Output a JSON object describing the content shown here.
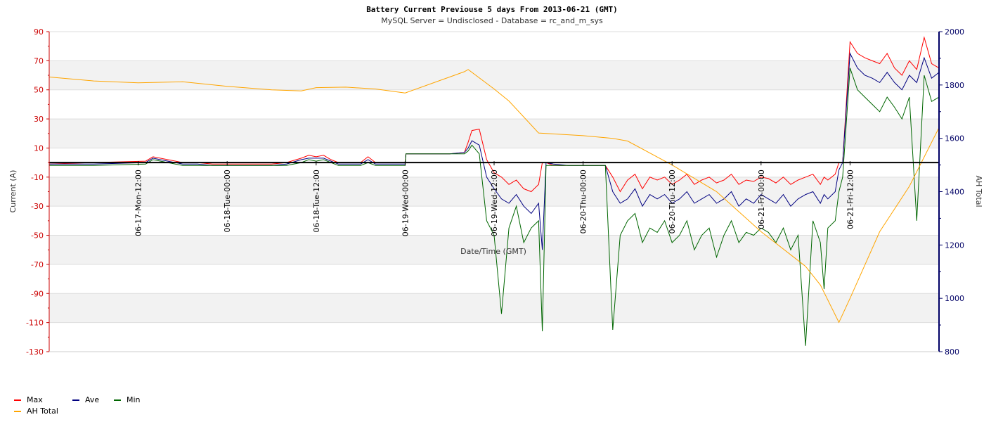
{
  "chart_data": {
    "type": "line",
    "title": "Battery Current Previouse 5 days From 2013-06-21 (GMT)",
    "subtitle": "MySQL Server = Undisclosed - Database = rc_and_m_sys",
    "xlabel": "Date/Time (GMT)",
    "ylabel_left": "Current (A)",
    "ylabel_right": "AH Total",
    "ylim_left": [
      -130,
      90
    ],
    "ylim_right": [
      800,
      2000
    ],
    "yticks_left": [
      90,
      70,
      50,
      30,
      10,
      -10,
      -30,
      -50,
      -70,
      -90,
      -110,
      -130
    ],
    "yticks_right": [
      2000,
      1800,
      1600,
      1400,
      1200,
      1000,
      800
    ],
    "x_hours_range": [
      0,
      120
    ],
    "x_ticks": [
      {
        "hour": 12,
        "label": "06-17-Mon-12:00"
      },
      {
        "hour": 24,
        "label": "06-18-Tue-00:00"
      },
      {
        "hour": 36,
        "label": "06-18-Tue-12:00"
      },
      {
        "hour": 48,
        "label": "06-19-Wed-00:00"
      },
      {
        "hour": 60,
        "label": "06-19-Wed-12:00"
      },
      {
        "hour": 72,
        "label": "06-20-Thu-00:00"
      },
      {
        "hour": 84,
        "label": "06-20-Thu-12:00"
      },
      {
        "hour": 96,
        "label": "06-21-Fri-00:00"
      },
      {
        "hour": 108,
        "label": "06-21-Fri-12:00"
      }
    ],
    "grid": true,
    "zero_line": true,
    "legend_position": "bottom-left",
    "series": [
      {
        "name": "Max",
        "color": "#ff0000",
        "axis": "left",
        "x": [
          0,
          6,
          13,
          14,
          16,
          18,
          20,
          22,
          24,
          30,
          32,
          34,
          35,
          36,
          37,
          38,
          39,
          40,
          42,
          43,
          44,
          46,
          48,
          48.1,
          54,
          56,
          56.5,
          57,
          58,
          59,
          60,
          61,
          62,
          63,
          64,
          65,
          66,
          66.5,
          67,
          68,
          70,
          72,
          74,
          75,
          76,
          77,
          78,
          79,
          80,
          81,
          82,
          83,
          84,
          85,
          86,
          87,
          88,
          89,
          90,
          91,
          92,
          93,
          94,
          95,
          96,
          97,
          98,
          99,
          100,
          101,
          102,
          103,
          104,
          104.5,
          105,
          106,
          106.5,
          107,
          108,
          109,
          110,
          111,
          112,
          113,
          114,
          115,
          116,
          117,
          118,
          119,
          120
        ],
        "values": [
          -1,
          0,
          1,
          4,
          2,
          0,
          0,
          -1,
          -1,
          -1,
          0,
          3,
          5,
          4,
          5,
          2,
          0,
          0,
          0,
          4,
          0,
          0,
          0,
          6,
          6,
          7,
          14,
          22,
          23,
          2,
          -7,
          -10,
          -15,
          -12,
          -18,
          -20,
          -15,
          0,
          0,
          -2,
          -2,
          -2,
          -2,
          -2,
          -10,
          -20,
          -12,
          -8,
          -18,
          -10,
          -12,
          -10,
          -15,
          -12,
          -8,
          -15,
          -12,
          -10,
          -14,
          -12,
          -8,
          -15,
          -12,
          -13,
          -10,
          -11,
          -14,
          -10,
          -15,
          -12,
          -10,
          -8,
          -15,
          -10,
          -12,
          -8,
          0,
          0,
          83,
          75,
          72,
          70,
          68,
          75,
          65,
          60,
          70,
          64,
          86,
          68,
          65
        ],
        "x_extra_note": ""
      },
      {
        "name": "Ave",
        "color": "#000080",
        "axis": "left",
        "x": [
          0,
          6,
          13,
          14,
          16,
          18,
          20,
          22,
          24,
          30,
          32,
          34,
          35,
          36,
          37,
          38,
          39,
          40,
          42,
          43,
          44,
          46,
          48,
          48.1,
          54,
          56,
          56.5,
          57,
          58,
          59,
          60,
          61,
          62,
          63,
          64,
          65,
          66,
          66.5,
          67,
          68,
          70,
          72,
          74,
          75,
          76,
          77,
          78,
          79,
          80,
          81,
          82,
          83,
          84,
          85,
          86,
          87,
          88,
          89,
          90,
          91,
          92,
          93,
          94,
          95,
          96,
          97,
          98,
          99,
          100,
          101,
          102,
          103,
          104,
          104.5,
          105,
          106,
          106.5,
          107,
          108,
          109,
          110,
          111,
          112,
          113,
          114,
          115,
          116,
          117,
          118,
          119,
          120
        ],
        "values": [
          -1,
          -1,
          0,
          3,
          1,
          -1,
          -1,
          -2,
          -2,
          -2,
          -1,
          2,
          3,
          3,
          3,
          1,
          -1,
          -1,
          -1,
          2,
          -1,
          -1,
          -1,
          6,
          6,
          7,
          10,
          15,
          12,
          -10,
          -18,
          -25,
          -28,
          -22,
          -30,
          -35,
          -28,
          -60,
          0,
          -1,
          -2,
          -2,
          -2,
          -2,
          -20,
          -28,
          -25,
          -18,
          -30,
          -22,
          -25,
          -22,
          -28,
          -25,
          -20,
          -28,
          -25,
          -22,
          -28,
          -25,
          -20,
          -30,
          -25,
          -28,
          -22,
          -25,
          -28,
          -22,
          -30,
          -25,
          -22,
          -20,
          -28,
          -22,
          -25,
          -20,
          -5,
          0,
          75,
          65,
          60,
          58,
          55,
          62,
          55,
          50,
          60,
          55,
          72,
          58,
          62
        ],
        "x_extra_note": ""
      },
      {
        "name": "Min",
        "color": "#006600",
        "axis": "left",
        "x": [
          0,
          6,
          13,
          14,
          16,
          18,
          20,
          22,
          24,
          30,
          32,
          34,
          35,
          36,
          37,
          38,
          39,
          40,
          42,
          43,
          44,
          46,
          48,
          48.1,
          54,
          56,
          56.5,
          57,
          58,
          59,
          60,
          61,
          62,
          63,
          64,
          65,
          66,
          66.5,
          67,
          68,
          70,
          72,
          74,
          75,
          76,
          77,
          78,
          79,
          80,
          81,
          82,
          83,
          84,
          85,
          86,
          87,
          88,
          89,
          90,
          91,
          92,
          93,
          94,
          95,
          96,
          97,
          98,
          99,
          100,
          101,
          102,
          103,
          104,
          104.5,
          105,
          106,
          106.5,
          107,
          108,
          109,
          110,
          111,
          112,
          113,
          114,
          115,
          116,
          117,
          118,
          119,
          120
        ],
        "values": [
          -2,
          -2,
          -1,
          2,
          0,
          -2,
          -2,
          -2,
          -2,
          -2,
          -2,
          0,
          2,
          1,
          2,
          0,
          -2,
          -2,
          -2,
          0,
          -2,
          -2,
          -2,
          6,
          6,
          6,
          8,
          12,
          6,
          -40,
          -50,
          -104,
          -45,
          -30,
          -55,
          -45,
          -40,
          -116,
          -2,
          -2,
          -2,
          -2,
          -2,
          -2,
          -115,
          -50,
          -40,
          -35,
          -55,
          -45,
          -48,
          -40,
          -55,
          -50,
          -40,
          -60,
          -50,
          -45,
          -65,
          -50,
          -40,
          -55,
          -48,
          -50,
          -45,
          -48,
          -55,
          -45,
          -60,
          -50,
          -126,
          -40,
          -55,
          -87,
          -45,
          -40,
          -20,
          -10,
          65,
          50,
          45,
          40,
          35,
          45,
          38,
          30,
          45,
          -40,
          60,
          42,
          45
        ],
        "x_extra_note": ""
      },
      {
        "name": "AH Total",
        "color": "#ffa500",
        "axis": "right",
        "x": [
          0,
          6,
          12,
          18,
          24,
          30,
          34,
          36,
          40,
          44,
          48,
          54,
          56,
          56.5,
          60,
          62,
          66,
          72,
          76,
          78,
          84,
          90,
          96,
          102,
          104,
          106.5,
          108,
          112,
          116,
          120
        ],
        "values": [
          1830,
          1815,
          1808,
          1812,
          1795,
          1782,
          1778,
          1790,
          1792,
          1785,
          1770,
          1830,
          1850,
          1858,
          1785,
          1740,
          1620,
          1610,
          1600,
          1590,
          1500,
          1400,
          1250,
          1120,
          1050,
          910,
          1000,
          1250,
          1420,
          1640
        ]
      }
    ]
  },
  "legend": [
    {
      "label": "Max",
      "color": "#ff0000"
    },
    {
      "label": "Ave",
      "color": "#000080"
    },
    {
      "label": "Min",
      "color": "#006600"
    },
    {
      "label": "AH Total",
      "color": "#ffa500"
    }
  ],
  "colors": {
    "left_axis": "#cc0000",
    "right_axis": "#000066",
    "band": "#f2f2f2",
    "grid": "#dddddd"
  }
}
